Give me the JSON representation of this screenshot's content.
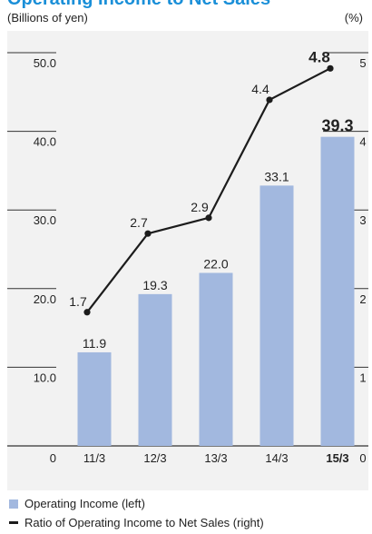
{
  "colors": {
    "title": "#1a8fd8",
    "bar": "#a2b8df",
    "line": "#1c1c1c",
    "grid": "#333333",
    "text": "#222222",
    "panel": "#f2f2f2"
  },
  "chart_data": {
    "type": "bar",
    "title": "Operating Income to Net Sales",
    "left_unit": "(Billions of yen)",
    "right_unit": "(%)",
    "categories": [
      "11/3",
      "12/3",
      "13/3",
      "14/3",
      "15/3"
    ],
    "highlight_category": "15/3",
    "ylim_left": [
      0,
      50
    ],
    "yticks_left": [
      "0",
      "10.0",
      "20.0",
      "30.0",
      "40.0",
      "50.0"
    ],
    "ylim_right": [
      0,
      5
    ],
    "yticks_right": [
      "0",
      "1",
      "2",
      "3",
      "4",
      "5"
    ],
    "series": [
      {
        "name": "Operating Income (left)",
        "kind": "bar",
        "axis": "left",
        "values": [
          11.9,
          19.3,
          22.0,
          33.1,
          39.3
        ],
        "labels": [
          "11.9",
          "19.3",
          "22.0",
          "33.1",
          "39.3"
        ]
      },
      {
        "name": "Ratio of Operating Income to Net Sales (right)",
        "kind": "line",
        "axis": "right",
        "values": [
          1.7,
          2.7,
          2.9,
          4.4,
          4.8
        ],
        "labels": [
          "1.7",
          "2.7",
          "2.9",
          "4.4",
          "4.8"
        ]
      }
    ],
    "grid": true,
    "legend_position": "bottom-left"
  }
}
